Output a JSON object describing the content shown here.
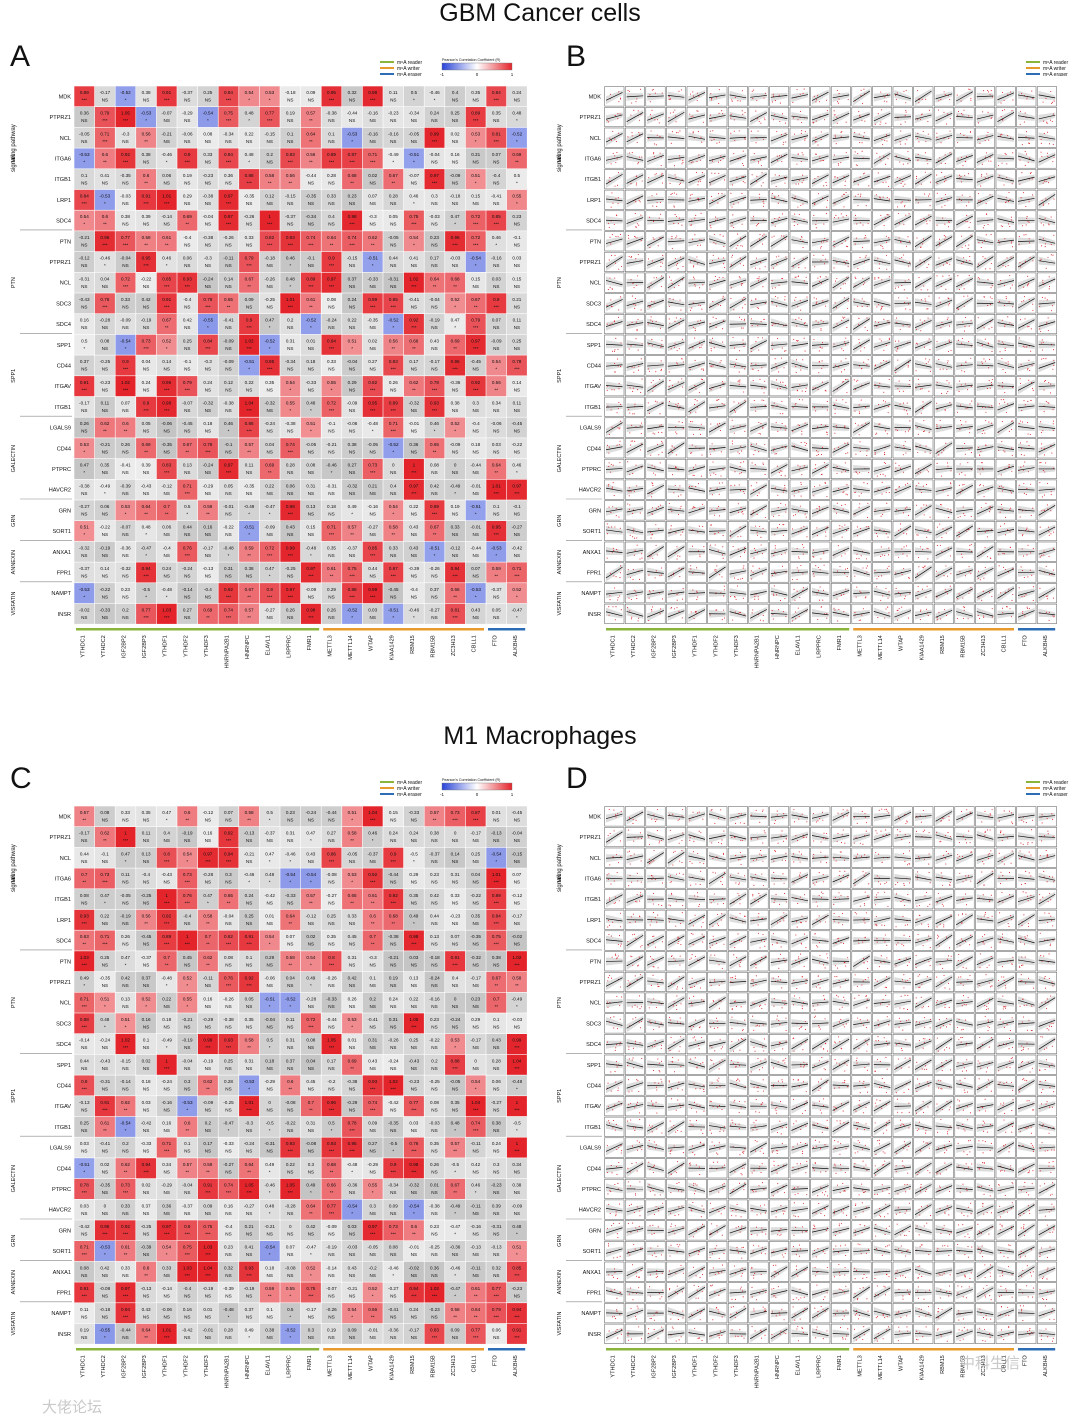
{
  "titles": {
    "top": "GBM Cancer cells",
    "bottom": "M1 Macrophages"
  },
  "panels": {
    "A": {
      "letter": "A",
      "kind": "correlation-heatmap"
    },
    "B": {
      "letter": "B",
      "kind": "scatter-matrix"
    },
    "C": {
      "letter": "C",
      "kind": "correlation-heatmap"
    },
    "D": {
      "letter": "D",
      "kind": "scatter-matrix"
    }
  },
  "legend": {
    "groups": [
      {
        "label": "m⁶A reader",
        "color": "#8ab43a"
      },
      {
        "label": "m⁶A writer",
        "color": "#e89a2c"
      },
      {
        "label": "m⁶A eraser",
        "color": "#2d6db5"
      }
    ],
    "colorbar_title": "Pearson's Correlation Coefficient (R)",
    "colorbar_ticks": [
      "-1",
      "0",
      "1"
    ],
    "colorbar_colors": {
      "negative": "#2b44d8",
      "zero": "#ffffff",
      "positive": "#e4242b"
    }
  },
  "y_axis_title": "signaling pathway",
  "rows": [
    {
      "group": "MK",
      "genes": [
        "MDK",
        "PTPRZ1",
        "NCL",
        "ITGA6",
        "ITGB1",
        "LRP1",
        "SDC4"
      ]
    },
    {
      "group": "PTN",
      "genes": [
        "PTN",
        "PTPRZ1",
        "NCL",
        "SDC3",
        "SDC4"
      ]
    },
    {
      "group": "SPP1",
      "genes": [
        "SPP1",
        "CD44",
        "ITGAV",
        "ITGB1"
      ]
    },
    {
      "group": "GALECTIN",
      "genes": [
        "LGALS9",
        "CD44",
        "PTPRC",
        "HAVCR2"
      ]
    },
    {
      "group": "GRN",
      "genes": [
        "GRN",
        "SORT1"
      ]
    },
    {
      "group": "ANNEXIN",
      "genes": [
        "ANXA1",
        "FPR1"
      ]
    },
    {
      "group": "VISFATIN",
      "genes": [
        "NAMPT",
        "INSR"
      ]
    }
  ],
  "columns": [
    {
      "name": "YTHDC1",
      "role": "reader"
    },
    {
      "name": "YTHDC2",
      "role": "reader"
    },
    {
      "name": "IGF2BP2",
      "role": "reader"
    },
    {
      "name": "IGF2BP3",
      "role": "reader"
    },
    {
      "name": "YTHDF1",
      "role": "reader"
    },
    {
      "name": "YTHDF2",
      "role": "reader"
    },
    {
      "name": "YTHDF3",
      "role": "reader"
    },
    {
      "name": "HNRNPA2B1",
      "role": "reader"
    },
    {
      "name": "HNRNPC",
      "role": "reader"
    },
    {
      "name": "ELAVL1",
      "role": "reader"
    },
    {
      "name": "LRPPRC",
      "role": "reader"
    },
    {
      "name": "FMR1",
      "role": "reader"
    },
    {
      "name": "METTL3",
      "role": "writer"
    },
    {
      "name": "METTL14",
      "role": "writer"
    },
    {
      "name": "WTAP",
      "role": "writer"
    },
    {
      "name": "KIAA1429",
      "role": "writer"
    },
    {
      "name": "RBM15",
      "role": "writer"
    },
    {
      "name": "RBM15B",
      "role": "writer"
    },
    {
      "name": "ZC3H13",
      "role": "writer"
    },
    {
      "name": "CBLL1",
      "role": "writer"
    },
    {
      "name": "FTO",
      "role": "eraser"
    },
    {
      "name": "ALKBH5",
      "role": "eraser"
    }
  ],
  "cell_labels": {
    "significance": [
      "NS",
      "*",
      "**",
      "***"
    ]
  },
  "watermarks": [
    "中科生信",
    "大佬论坛"
  ]
}
